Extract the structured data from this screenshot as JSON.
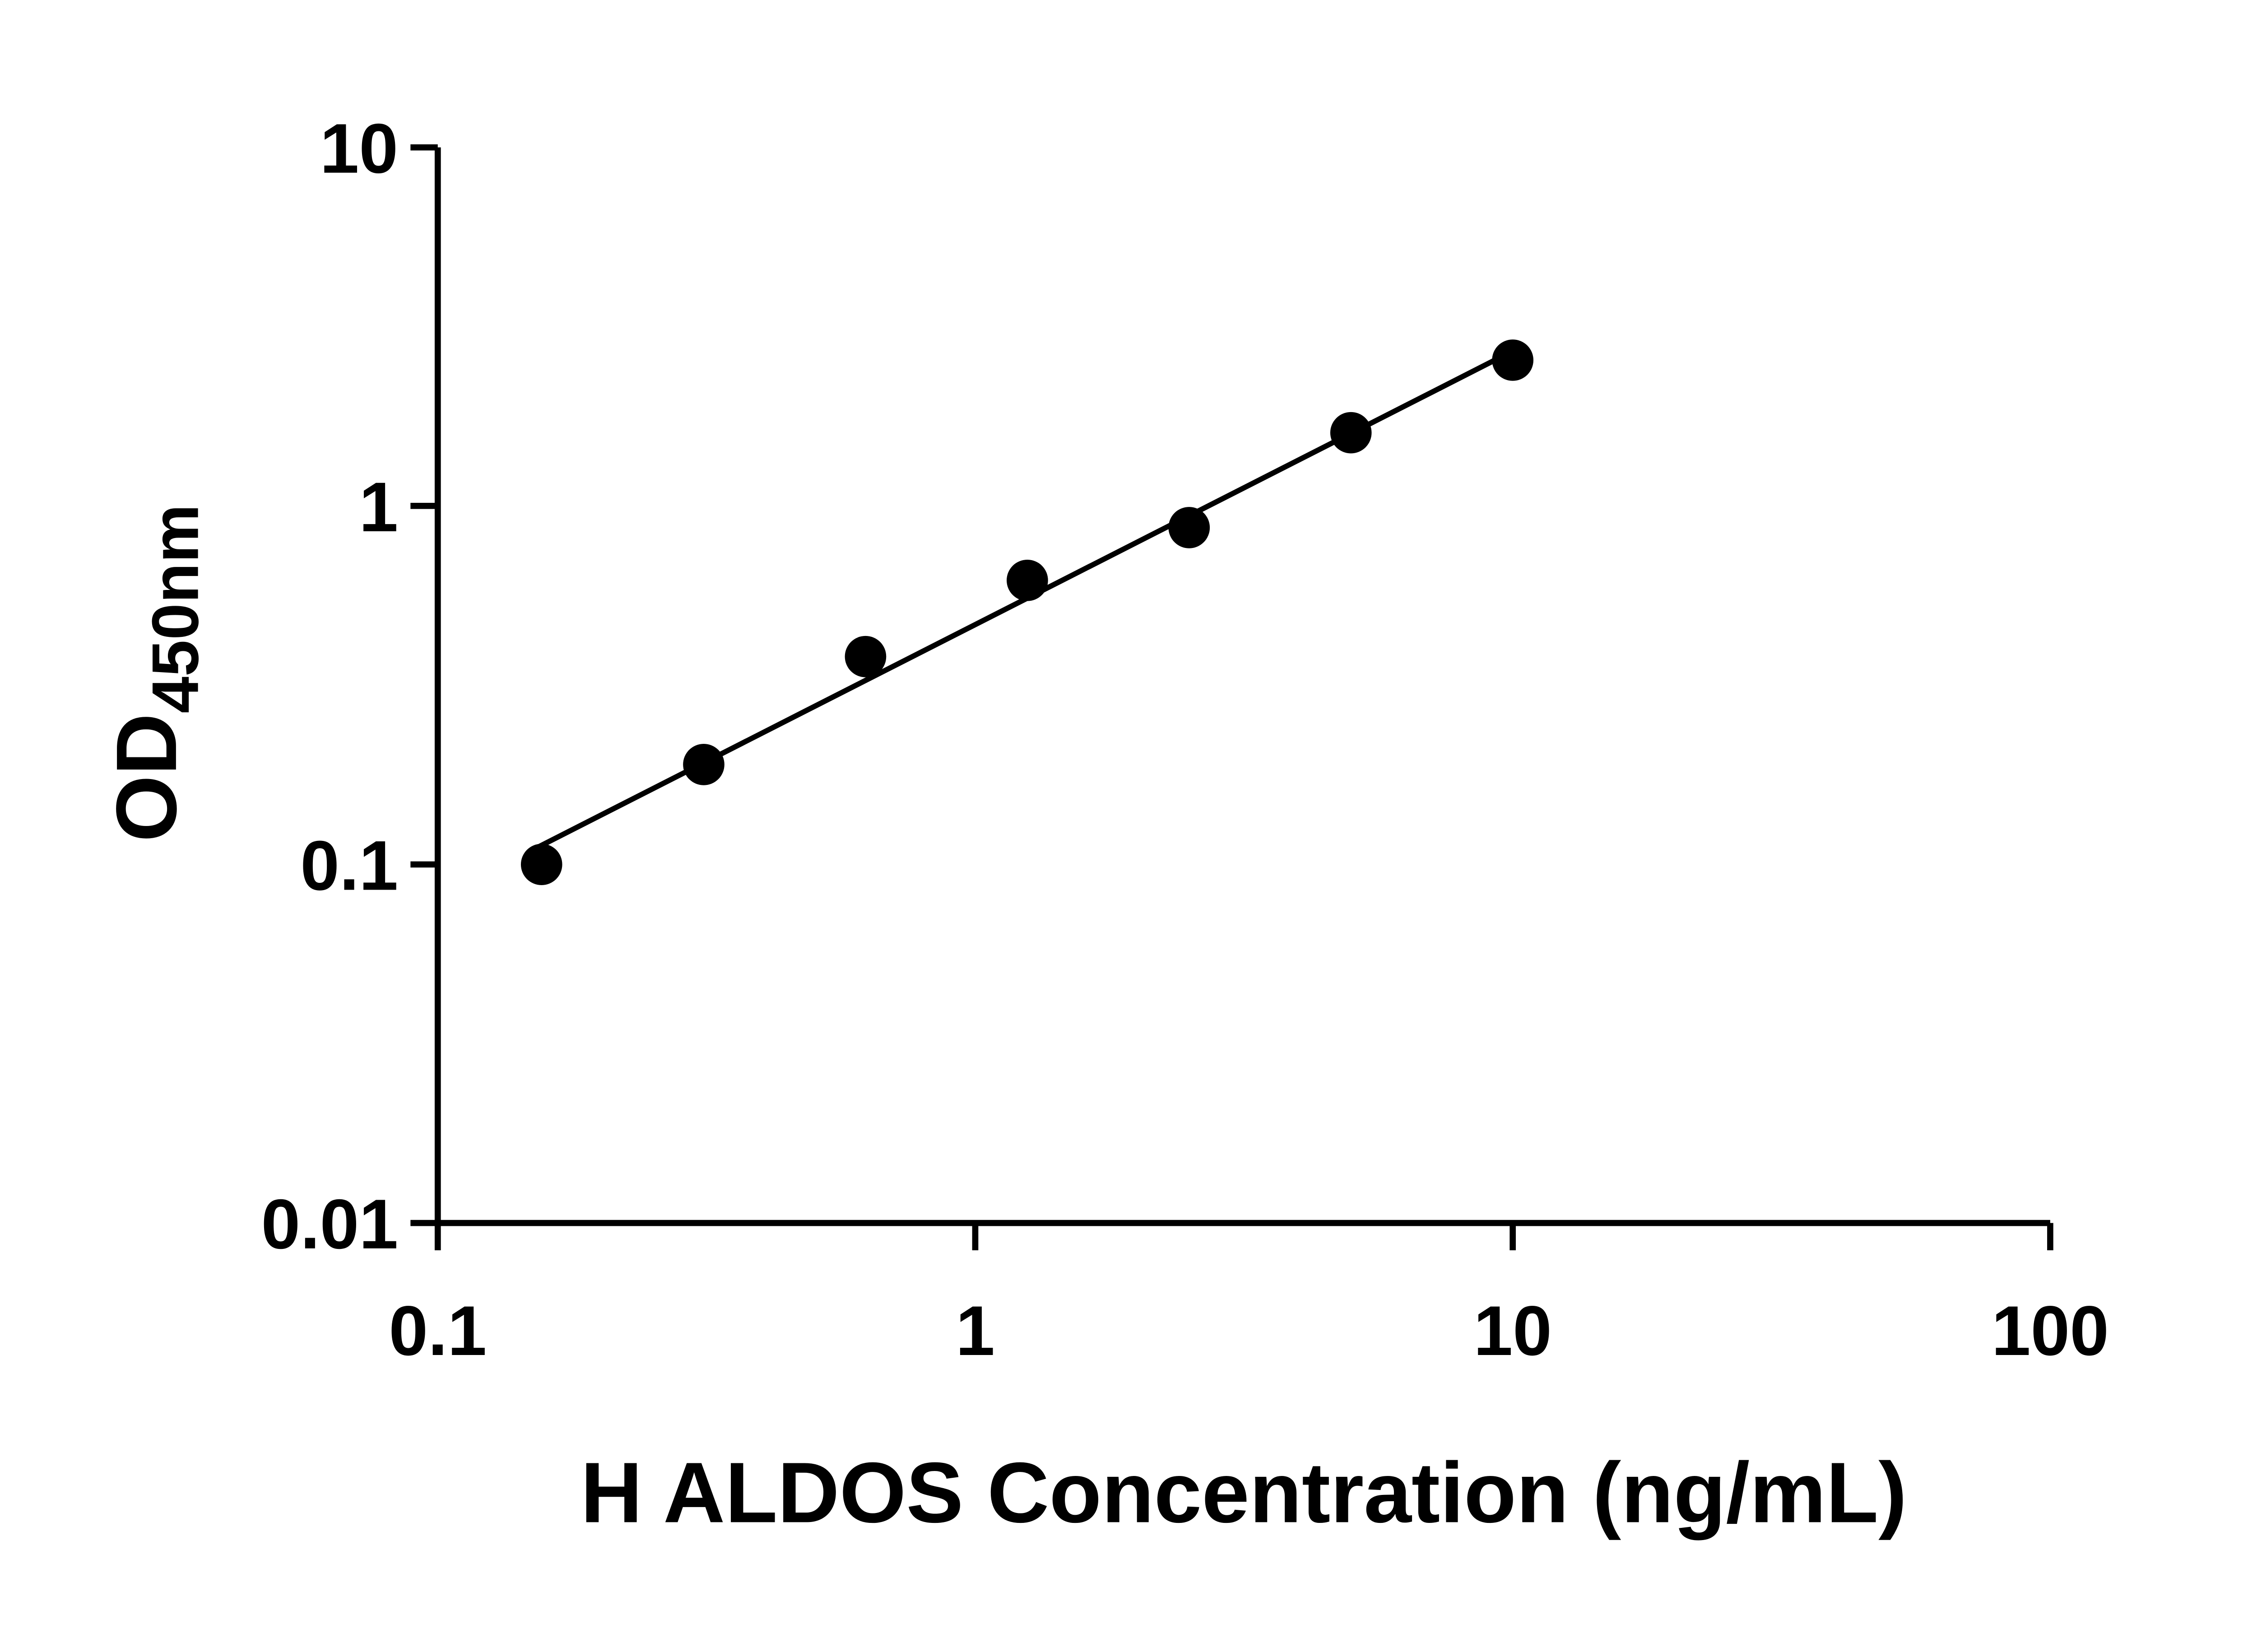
{
  "figure": {
    "background": "#ffffff",
    "ink": "#000000"
  },
  "chart_data": {
    "type": "scatter",
    "title": "",
    "xlabel": "H ALDOS Concentration (ng/mL)",
    "ylabel_main": "OD",
    "ylabel_sub": "450nm",
    "x_scale": "log10",
    "y_scale": "log10",
    "xlim": [
      0.1,
      100
    ],
    "ylim": [
      0.01,
      10
    ],
    "x_ticks": [
      0.1,
      1,
      10,
      100
    ],
    "x_tick_labels": [
      "0.1",
      "1",
      "10",
      "100"
    ],
    "y_ticks": [
      0.01,
      0.1,
      1,
      10
    ],
    "y_tick_labels": [
      "0.01",
      "0.1",
      "1",
      "10"
    ],
    "grid": false,
    "legend": "none",
    "points": [
      {
        "x": 0.156,
        "y": 0.1
      },
      {
        "x": 0.3125,
        "y": 0.19
      },
      {
        "x": 0.625,
        "y": 0.38
      },
      {
        "x": 1.25,
        "y": 0.62
      },
      {
        "x": 2.5,
        "y": 0.87
      },
      {
        "x": 5,
        "y": 1.6
      },
      {
        "x": 10,
        "y": 2.55
      }
    ],
    "trend": {
      "kind": "linear-fit-loglog",
      "slope": 0.763,
      "intercept": -0.331,
      "x_start": 0.152,
      "x_end": 10.2
    },
    "marker": {
      "shape": "circle",
      "color": "#000000",
      "radius": 47
    },
    "line_color": "#000000",
    "axis_color": "#000000"
  }
}
